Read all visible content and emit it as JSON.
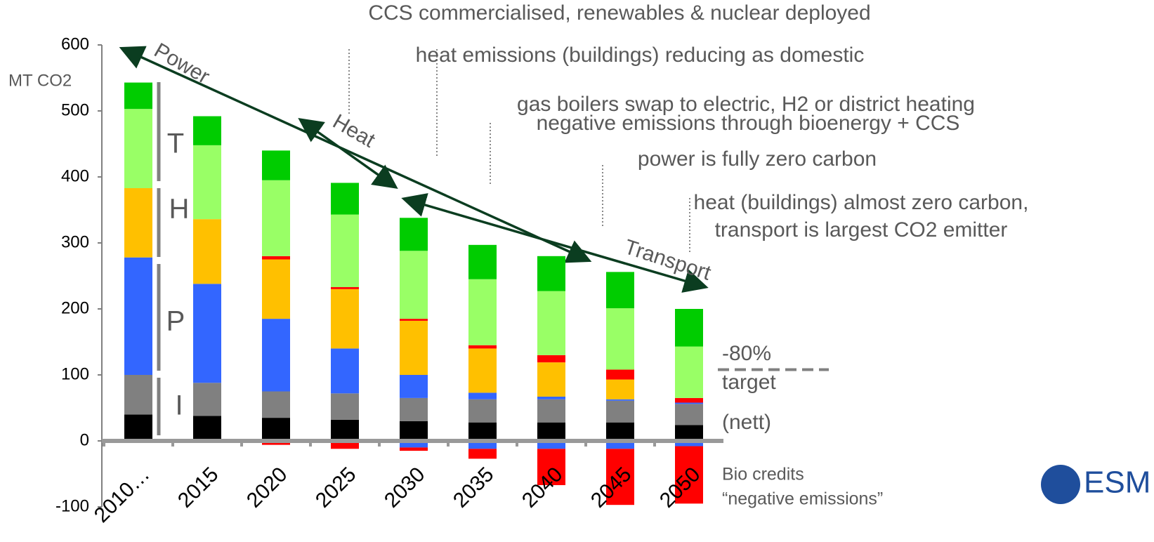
{
  "chart_data": {
    "type": "bar",
    "stacked": true,
    "y_label": "MT CO2",
    "categories": [
      "2010…",
      "2015",
      "2020",
      "2025",
      "2030",
      "2035",
      "2040",
      "2045",
      "2050"
    ],
    "series": [
      {
        "color": "#000000",
        "values": [
          40,
          38,
          35,
          32,
          30,
          28,
          28,
          28,
          24
        ]
      },
      {
        "color": "#808080",
        "values": [
          60,
          50,
          40,
          40,
          35,
          35,
          35,
          33,
          32
        ]
      },
      {
        "color": "#3366ff",
        "values": [
          178,
          150,
          110,
          68,
          35,
          10,
          4,
          2,
          2
        ]
      },
      {
        "color": "#ffc000",
        "values": [
          105,
          98,
          90,
          90,
          82,
          67,
          52,
          30,
          0
        ]
      },
      {
        "color": "#ff0000",
        "values": [
          0,
          0,
          5,
          3,
          3,
          5,
          11,
          15,
          7
        ]
      },
      {
        "color": "#99ff66",
        "values": [
          120,
          112,
          115,
          110,
          103,
          100,
          97,
          93,
          78
        ]
      },
      {
        "color": "#00cc00",
        "values": [
          40,
          44,
          45,
          48,
          50,
          52,
          53,
          55,
          57
        ]
      },
      {
        "color": "#3366ff",
        "values": [
          0,
          0,
          0,
          0,
          -10,
          -12,
          -12,
          -12,
          -8
        ]
      },
      {
        "color": "#ff0000",
        "values": [
          0,
          0,
          -6,
          -12,
          -5,
          -15,
          -55,
          -85,
          -87
        ]
      }
    ],
    "ylim": [
      -100,
      600
    ],
    "yticks": [
      -100,
      0,
      100,
      200,
      300,
      400,
      500,
      600
    ],
    "reference_line": 108,
    "sector_labels": [
      "T",
      "H",
      "P",
      "I"
    ],
    "arrow_labels": [
      "Power",
      "Heat",
      "Transport"
    ],
    "annotations": [
      "CCS commercialised, renewables & nuclear deployed",
      "heat emissions (buildings) reducing as domestic",
      "gas boilers swap to electric, H2 or district heating",
      "negative emissions through bioenergy + CCS",
      "power is fully zero carbon",
      "heat (buildings) almost zero carbon,",
      "transport is largest CO2 emitter"
    ],
    "target_labels": [
      "-80%",
      "target",
      "(nett)"
    ],
    "bio_labels": [
      "Bio credits",
      "“negative emissions”"
    ],
    "logo": "ESM"
  }
}
